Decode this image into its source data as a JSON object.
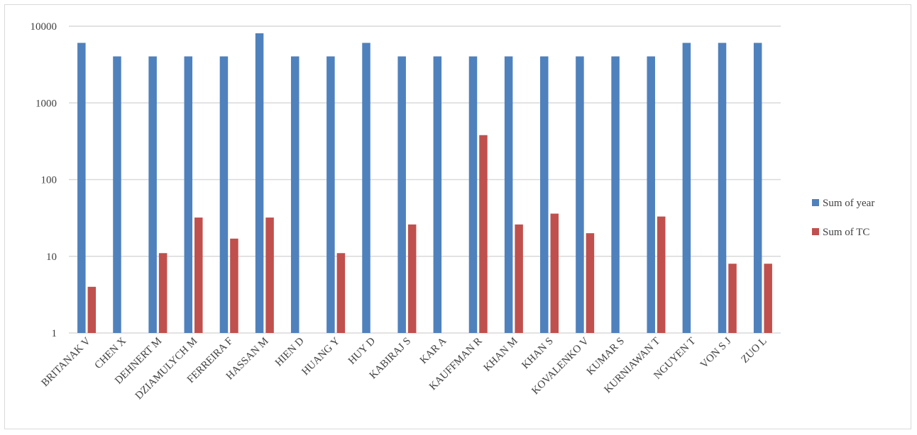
{
  "chart_data": {
    "type": "bar",
    "title": "",
    "xlabel": "",
    "ylabel": "",
    "y_scale": "log",
    "ylim": [
      1,
      10000
    ],
    "y_ticks": [
      "1",
      "10",
      "100",
      "1000",
      "10000"
    ],
    "grid": true,
    "legend_position": "right",
    "categories": [
      "BRITANAK V",
      "CHEN X",
      "DEHNERT M",
      "DZIAMULYCH M",
      "FERREIRA F",
      "HASSAN M",
      "HIEN D",
      "HUANG Y",
      "HUY D",
      "KABIRAJ S",
      "KAR A",
      "KAUFFMAN R",
      "KHAN M",
      "KHAN S",
      "KOVALENKO V",
      "KUMAR S",
      "KURNIAWAN T",
      "NGUYEN T",
      "VON S J",
      "ZUO L"
    ],
    "series": [
      {
        "name": "Sum of year",
        "color": "#4f81bd",
        "values": [
          6063,
          4042,
          4040,
          4042,
          4042,
          8083,
          4042,
          4042,
          6063,
          4042,
          4042,
          4040,
          4042,
          4042,
          4042,
          4042,
          4042,
          6063,
          6063,
          6063
        ]
      },
      {
        "name": "Sum of TC",
        "color": "#c0504d",
        "values": [
          4,
          0,
          11,
          32,
          17,
          32,
          0,
          11,
          0,
          26,
          0,
          380,
          26,
          36,
          20,
          0,
          33,
          0,
          8,
          8
        ]
      }
    ]
  }
}
